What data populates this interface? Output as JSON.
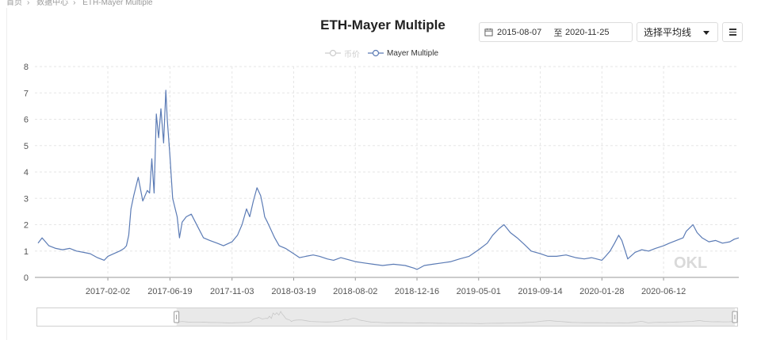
{
  "breadcrumb": [
    "首页",
    "数据中心",
    "ETH-Mayer Multiple"
  ],
  "title": "ETH-Mayer Multiple",
  "date_range": {
    "start": "2015-08-07",
    "separator": "至",
    "end": "2020-11-25",
    "icon": "calendar-icon"
  },
  "average_select": {
    "label": "选择平均线"
  },
  "menu": {
    "icon": "hamburger-menu-icon"
  },
  "legend": [
    {
      "name": "币价",
      "active": false,
      "color": "#cccccc"
    },
    {
      "name": "Mayer Multiple",
      "active": true,
      "color": "#5b7bb5"
    }
  ],
  "watermark": "OKL",
  "colors": {
    "line": "#5b7bb5",
    "grid": "#e6e6e6",
    "axis": "#999999",
    "slider_fill": "#e9e9e9"
  },
  "chart_data": {
    "type": "line",
    "title": "ETH-Mayer Multiple",
    "xlabel": "",
    "ylabel": "",
    "ylim": [
      0,
      8
    ],
    "yticks": [
      0,
      1,
      2,
      3,
      4,
      5,
      6,
      7,
      8
    ],
    "x_tick_labels": [
      "2017-02-02",
      "2017-06-19",
      "2017-11-03",
      "2018-03-19",
      "2018-08-02",
      "2018-12-16",
      "2019-05-01",
      "2019-09-14",
      "2020-01-28",
      "2020-06-12"
    ],
    "grid": true,
    "legend_position": "top-center",
    "series": [
      {
        "name": "Mayer Multiple",
        "x": [
          "2016-09-01",
          "2016-09-10",
          "2016-09-25",
          "2016-10-10",
          "2016-10-25",
          "2016-11-10",
          "2016-11-25",
          "2016-12-10",
          "2016-12-25",
          "2017-01-10",
          "2017-01-25",
          "2017-02-02",
          "2017-02-15",
          "2017-02-28",
          "2017-03-05",
          "2017-03-10",
          "2017-03-15",
          "2017-03-20",
          "2017-03-25",
          "2017-03-31",
          "2017-04-10",
          "2017-04-20",
          "2017-04-30",
          "2017-05-05",
          "2017-05-10",
          "2017-05-15",
          "2017-05-20",
          "2017-05-25",
          "2017-05-30",
          "2017-06-05",
          "2017-06-10",
          "2017-06-13",
          "2017-06-19",
          "2017-06-25",
          "2017-07-05",
          "2017-07-10",
          "2017-07-16",
          "2017-07-25",
          "2017-08-05",
          "2017-08-20",
          "2017-09-01",
          "2017-09-15",
          "2017-10-01",
          "2017-10-15",
          "2017-11-03",
          "2017-11-15",
          "2017-11-25",
          "2017-12-05",
          "2017-12-12",
          "2017-12-20",
          "2017-12-28",
          "2018-01-05",
          "2018-01-10",
          "2018-01-14",
          "2018-01-20",
          "2018-01-28",
          "2018-02-05",
          "2018-02-15",
          "2018-03-01",
          "2018-03-19",
          "2018-04-01",
          "2018-04-15",
          "2018-05-01",
          "2018-05-15",
          "2018-06-01",
          "2018-06-15",
          "2018-07-01",
          "2018-08-02",
          "2018-08-20",
          "2018-09-10",
          "2018-10-01",
          "2018-10-25",
          "2018-11-20",
          "2018-12-10",
          "2018-12-16",
          "2019-01-01",
          "2019-01-20",
          "2019-02-10",
          "2019-03-01",
          "2019-03-20",
          "2019-04-10",
          "2019-05-01",
          "2019-05-20",
          "2019-06-01",
          "2019-06-15",
          "2019-06-26",
          "2019-07-10",
          "2019-07-25",
          "2019-08-10",
          "2019-08-25",
          "2019-09-14",
          "2019-10-01",
          "2019-10-20",
          "2019-11-10",
          "2019-12-01",
          "2019-12-20",
          "2020-01-05",
          "2020-01-28",
          "2020-02-05",
          "2020-02-15",
          "2020-02-25",
          "2020-03-05",
          "2020-03-12",
          "2020-03-25",
          "2020-04-10",
          "2020-04-25",
          "2020-05-10",
          "2020-05-25",
          "2020-06-12",
          "2020-06-25",
          "2020-07-10",
          "2020-07-25",
          "2020-08-01",
          "2020-08-10",
          "2020-08-16",
          "2020-08-25",
          "2020-09-05",
          "2020-09-20",
          "2020-10-05",
          "2020-10-20",
          "2020-11-05",
          "2020-11-15",
          "2020-11-25"
        ],
        "values": [
          1.3,
          1.5,
          1.2,
          1.1,
          1.05,
          1.1,
          1.0,
          0.95,
          0.9,
          0.75,
          0.65,
          0.8,
          0.9,
          1.0,
          1.05,
          1.1,
          1.2,
          1.6,
          2.6,
          3.1,
          3.8,
          2.9,
          3.3,
          3.2,
          4.5,
          3.2,
          6.2,
          5.3,
          6.4,
          5.1,
          7.1,
          6.0,
          4.6,
          3.0,
          2.3,
          1.5,
          2.1,
          2.3,
          2.4,
          1.9,
          1.5,
          1.4,
          1.3,
          1.2,
          1.35,
          1.6,
          2.0,
          2.6,
          2.3,
          2.9,
          3.4,
          3.1,
          2.7,
          2.3,
          2.1,
          1.8,
          1.5,
          1.2,
          1.1,
          0.9,
          0.75,
          0.8,
          0.85,
          0.8,
          0.7,
          0.65,
          0.75,
          0.6,
          0.55,
          0.5,
          0.45,
          0.5,
          0.45,
          0.35,
          0.3,
          0.45,
          0.5,
          0.55,
          0.6,
          0.7,
          0.8,
          1.05,
          1.3,
          1.6,
          1.85,
          2.0,
          1.7,
          1.5,
          1.25,
          1.0,
          0.9,
          0.8,
          0.8,
          0.85,
          0.75,
          0.7,
          0.75,
          0.65,
          0.8,
          1.0,
          1.3,
          1.6,
          1.4,
          0.7,
          0.95,
          1.05,
          1.0,
          1.1,
          1.2,
          1.3,
          1.4,
          1.5,
          1.75,
          1.9,
          2.0,
          1.7,
          1.5,
          1.35,
          1.4,
          1.3,
          1.35,
          1.45,
          1.5
        ]
      }
    ]
  }
}
